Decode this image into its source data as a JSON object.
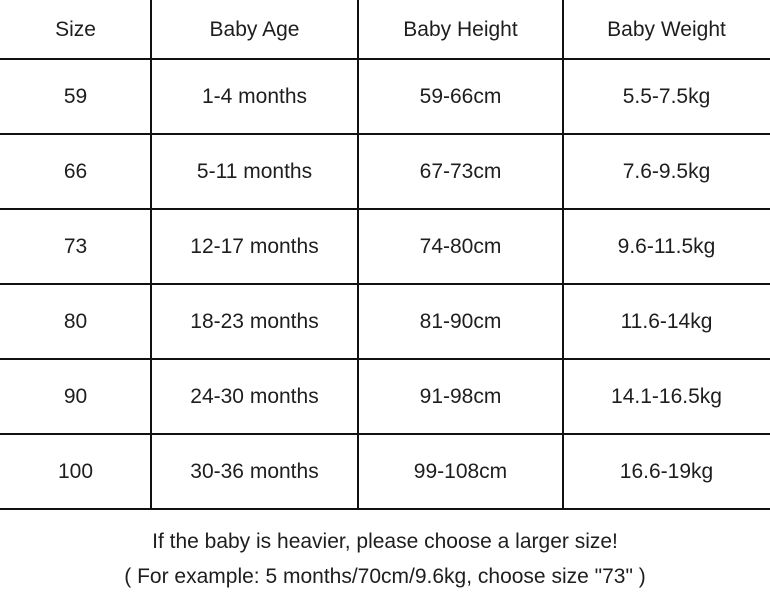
{
  "table": {
    "headers": [
      "Size",
      "Baby Age",
      "Baby Height",
      "Baby Weight"
    ],
    "rows": [
      [
        "59",
        "1-4 months",
        "59-66cm",
        "5.5-7.5kg"
      ],
      [
        "66",
        "5-11 months",
        "67-73cm",
        "7.6-9.5kg"
      ],
      [
        "73",
        "12-17 months",
        "74-80cm",
        "9.6-11.5kg"
      ],
      [
        "80",
        "18-23 months",
        "81-90cm",
        "11.6-14kg"
      ],
      [
        "90",
        "24-30 months",
        "91-98cm",
        "14.1-16.5kg"
      ],
      [
        "100",
        "30-36 months",
        "99-108cm",
        "16.6-19kg"
      ]
    ]
  },
  "notes": [
    "If the baby is heavier, please choose a larger size!",
    "( For example: 5 months/70cm/9.6kg, choose size \"73\" )"
  ]
}
